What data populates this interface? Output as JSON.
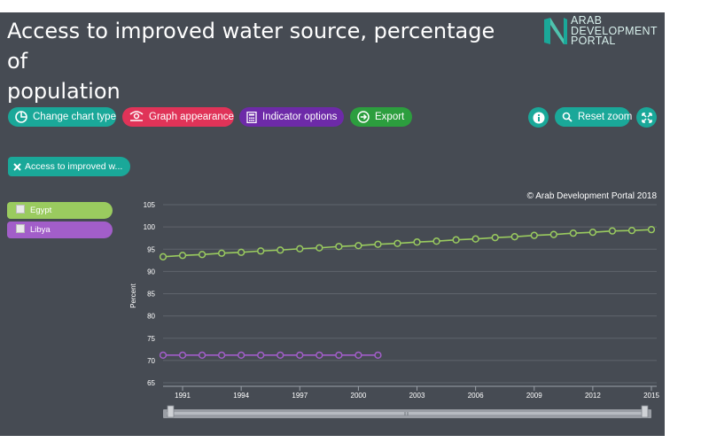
{
  "header": {
    "title_line1": "Access to improved water source, percentage of",
    "title_line2": "population",
    "logo": {
      "line1": "ARAB",
      "line2": "DEVELOPMENT",
      "line3": "PORTAL"
    }
  },
  "toolbar": {
    "change_chart_type": "Change chart type",
    "graph_appearance": "Graph appearance",
    "indicator_options": "Indicator options",
    "export": "Export",
    "reset_zoom": "Reset zoom"
  },
  "indicator_tag": "Access to improved w...",
  "colors": {
    "panel_bg": "#464b53",
    "teal": "#1aa899",
    "red": "#e03358",
    "purple": "#6d2aa8",
    "green": "#2c9e3e",
    "egypt": "#9acb5f",
    "libya": "#a25ec9"
  },
  "chart_data": {
    "type": "line",
    "copyright": "© Arab Development Portal 2018",
    "ylabel": "Percent",
    "xlabel": "",
    "ylim": [
      65,
      105
    ],
    "yticks": [
      65,
      70,
      75,
      80,
      85,
      90,
      95,
      100,
      105
    ],
    "xlim": [
      1990,
      2015
    ],
    "xticks": [
      1991,
      1994,
      1997,
      2000,
      2003,
      2006,
      2009,
      2012,
      2015
    ],
    "grid": true,
    "legend_placement": "left",
    "series": [
      {
        "name": "Egypt",
        "color": "#9acb5f",
        "x": [
          1990,
          1991,
          1992,
          1993,
          1994,
          1995,
          1996,
          1997,
          1998,
          1999,
          2000,
          2001,
          2002,
          2003,
          2004,
          2005,
          2006,
          2007,
          2008,
          2009,
          2010,
          2011,
          2012,
          2013,
          2014,
          2015
        ],
        "values": [
          93.3,
          93.6,
          93.8,
          94.1,
          94.3,
          94.6,
          94.8,
          95.1,
          95.3,
          95.6,
          95.8,
          96.1,
          96.3,
          96.6,
          96.8,
          97.1,
          97.3,
          97.6,
          97.8,
          98.1,
          98.3,
          98.6,
          98.8,
          99.1,
          99.2,
          99.4
        ]
      },
      {
        "name": "Libya",
        "color": "#a25ec9",
        "x": [
          1990,
          1991,
          1992,
          1993,
          1994,
          1995,
          1996,
          1997,
          1998,
          1999,
          2000,
          2001
        ],
        "values": [
          71.2,
          71.2,
          71.2,
          71.2,
          71.2,
          71.2,
          71.2,
          71.2,
          71.2,
          71.2,
          71.2,
          71.2
        ]
      }
    ]
  }
}
